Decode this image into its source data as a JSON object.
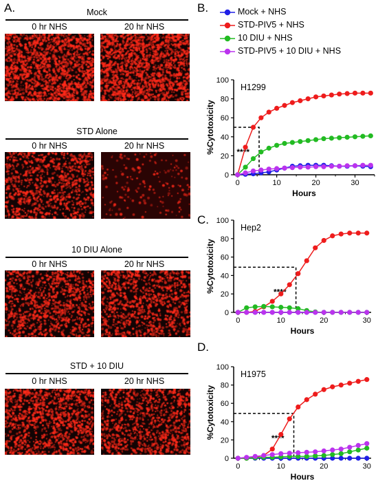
{
  "panels": {
    "A": "A.",
    "B": "B.",
    "C": "C.",
    "D": "D."
  },
  "microscopy": {
    "sections": [
      {
        "title": "Mock",
        "left_label": "0 hr NHS",
        "right_label": "20 hr NHS"
      },
      {
        "title": "STD Alone",
        "left_label": "0 hr NHS",
        "right_label": "20 hr NHS"
      },
      {
        "title": "10 DIU Alone",
        "left_label": "0 hr NHS",
        "right_label": "20 hr NHS"
      },
      {
        "title": "STD + 10 DIU",
        "left_label": "0 hr NHS",
        "right_label": "20 hr NHS"
      }
    ],
    "fluorescence_color": "#ff2a1a"
  },
  "legend": [
    {
      "name": "Mock + NHS",
      "color": "#1f1fe6"
    },
    {
      "name": "STD-PIV5 + NHS",
      "color": "#ee1c1c"
    },
    {
      "name": "10 DIU + NHS",
      "color": "#22bb22"
    },
    {
      "name": "STD-PIV5 + 10 DIU + NHS",
      "color": "#bb33ee"
    }
  ],
  "chart_data": [
    {
      "type": "line",
      "panel": "B",
      "title": "H1299",
      "xlabel": "Hours",
      "ylabel": "%Cytotoxicity",
      "xlim": [
        -1,
        35
      ],
      "ylim": [
        0,
        100
      ],
      "xticks": [
        "0",
        "10",
        "20",
        "30"
      ],
      "yticks": [
        "0",
        "20",
        "40",
        "60",
        "80",
        "100"
      ],
      "annotation": "****",
      "ec50_marker": {
        "x": 5.5,
        "y": 50
      },
      "series": [
        {
          "name": "Mock + NHS",
          "color": "#1f1fe6",
          "x": [
            0,
            2,
            4,
            6,
            8,
            10,
            12,
            14,
            16,
            18,
            20,
            22,
            24,
            26,
            28,
            30,
            32,
            34
          ],
          "y": [
            0,
            0.5,
            1,
            2,
            3,
            5,
            7,
            9,
            9.5,
            10,
            10,
            10,
            9.5,
            9,
            9,
            9.5,
            9,
            8.5
          ]
        },
        {
          "name": "STD-PIV5 + NHS",
          "color": "#ee1c1c",
          "x": [
            0,
            2,
            4,
            6,
            8,
            10,
            12,
            14,
            16,
            18,
            20,
            22,
            24,
            26,
            28,
            30,
            32,
            34
          ],
          "y": [
            0,
            29,
            50,
            60,
            66,
            70,
            73,
            76,
            78,
            80,
            82,
            83,
            84,
            85,
            85.5,
            86,
            86,
            86
          ]
        },
        {
          "name": "10 DIU + NHS",
          "color": "#22bb22",
          "x": [
            0,
            2,
            4,
            6,
            8,
            10,
            12,
            14,
            16,
            18,
            20,
            22,
            24,
            26,
            28,
            30,
            32,
            34
          ],
          "y": [
            0,
            8,
            17,
            24,
            28,
            31,
            33,
            34,
            35,
            36,
            37,
            38,
            38.5,
            39,
            39.5,
            40,
            40.5,
            41
          ]
        },
        {
          "name": "STD-PIV5 + 10 DIU + NHS",
          "color": "#bb33ee",
          "x": [
            0,
            2,
            4,
            6,
            8,
            10,
            12,
            14,
            16,
            18,
            20,
            22,
            24,
            26,
            28,
            30,
            32,
            34
          ],
          "y": [
            0,
            2,
            4,
            5,
            6,
            6.5,
            7,
            7.5,
            8,
            8,
            8.5,
            8.5,
            9,
            9,
            9.5,
            9.5,
            10,
            10
          ]
        }
      ]
    },
    {
      "type": "line",
      "panel": "C",
      "title": "Hep2",
      "xlabel": "Hours",
      "ylabel": "%Cytotoxicity",
      "xlim": [
        -1,
        31
      ],
      "ylim": [
        0,
        100
      ],
      "xticks": [
        "0",
        "10",
        "20",
        "30"
      ],
      "yticks": [
        "0",
        "20",
        "40",
        "60",
        "80",
        "100"
      ],
      "annotation": "****",
      "ec50_marker": {
        "x": 13.5,
        "y": 49
      },
      "series": [
        {
          "name": "Mock + NHS",
          "color": "#1f1fe6",
          "x": [
            0,
            2,
            4,
            6,
            8,
            10,
            12,
            14,
            16,
            18,
            20,
            22,
            24,
            26,
            28,
            30
          ],
          "y": [
            0,
            0,
            0,
            0,
            0,
            0,
            0,
            0,
            0,
            0,
            0,
            0,
            0,
            0,
            0,
            0
          ]
        },
        {
          "name": "STD-PIV5 + NHS",
          "color": "#ee1c1c",
          "x": [
            0,
            2,
            4,
            6,
            8,
            10,
            12,
            14,
            16,
            18,
            20,
            22,
            24,
            26,
            28,
            30
          ],
          "y": [
            0,
            0,
            1,
            6,
            12,
            20,
            30,
            42,
            56,
            70,
            78,
            83,
            85,
            86,
            86,
            86
          ]
        },
        {
          "name": "10 DIU + NHS",
          "color": "#22bb22",
          "x": [
            0,
            2,
            4,
            6,
            8,
            10,
            12,
            14,
            16,
            18,
            20,
            22,
            24,
            26,
            28,
            30
          ],
          "y": [
            0,
            5,
            6,
            6.5,
            6,
            5.5,
            5,
            4,
            2,
            0.5,
            0,
            0,
            0,
            0,
            0,
            0
          ]
        },
        {
          "name": "STD-PIV5 + 10 DIU + NHS",
          "color": "#bb33ee",
          "x": [
            0,
            2,
            4,
            6,
            8,
            10,
            12,
            14,
            16,
            18,
            20,
            22,
            24,
            26,
            28,
            30
          ],
          "y": [
            0,
            0,
            0,
            0,
            0,
            0,
            0,
            0,
            0,
            0,
            0,
            0,
            0,
            0,
            0,
            0
          ]
        }
      ]
    },
    {
      "type": "line",
      "panel": "D",
      "title": "H1975",
      "xlabel": "Hours",
      "ylabel": "%Cytotoxicity",
      "xlim": [
        -1,
        31
      ],
      "ylim": [
        0,
        100
      ],
      "xticks": [
        "0",
        "10",
        "20",
        "30"
      ],
      "yticks": [
        "0",
        "20",
        "40",
        "60",
        "80",
        "100"
      ],
      "annotation": "****",
      "ec50_marker": {
        "x": 13,
        "y": 49
      },
      "series": [
        {
          "name": "Mock + NHS",
          "color": "#1f1fe6",
          "x": [
            0,
            2,
            4,
            6,
            8,
            10,
            12,
            14,
            16,
            18,
            20,
            22,
            24,
            26,
            28,
            30
          ],
          "y": [
            0,
            0,
            0,
            0,
            0,
            0,
            0,
            0,
            0,
            0,
            0,
            0,
            0,
            0,
            0,
            0
          ]
        },
        {
          "name": "STD-PIV5 + NHS",
          "color": "#ee1c1c",
          "x": [
            0,
            2,
            4,
            6,
            8,
            10,
            12,
            14,
            16,
            18,
            20,
            22,
            24,
            26,
            28,
            30
          ],
          "y": [
            0,
            0,
            1,
            3,
            10,
            26,
            43,
            56,
            64,
            70,
            75,
            78,
            80,
            82,
            84,
            86
          ]
        },
        {
          "name": "10 DIU + NHS",
          "color": "#22bb22",
          "x": [
            0,
            2,
            4,
            6,
            8,
            10,
            12,
            14,
            16,
            18,
            20,
            22,
            24,
            26,
            28,
            30
          ],
          "y": [
            0,
            0,
            0.5,
            1,
            1,
            1.5,
            2,
            2,
            2,
            2.5,
            3,
            4,
            5,
            7,
            9,
            11
          ]
        },
        {
          "name": "STD-PIV5 + 10 DIU + NHS",
          "color": "#bb33ee",
          "x": [
            0,
            2,
            4,
            6,
            8,
            10,
            12,
            14,
            16,
            18,
            20,
            22,
            24,
            26,
            28,
            30
          ],
          "y": [
            0,
            1,
            2,
            3,
            4,
            5,
            5.5,
            6,
            6.5,
            7,
            8,
            9,
            10,
            12,
            14,
            16
          ]
        }
      ]
    }
  ]
}
